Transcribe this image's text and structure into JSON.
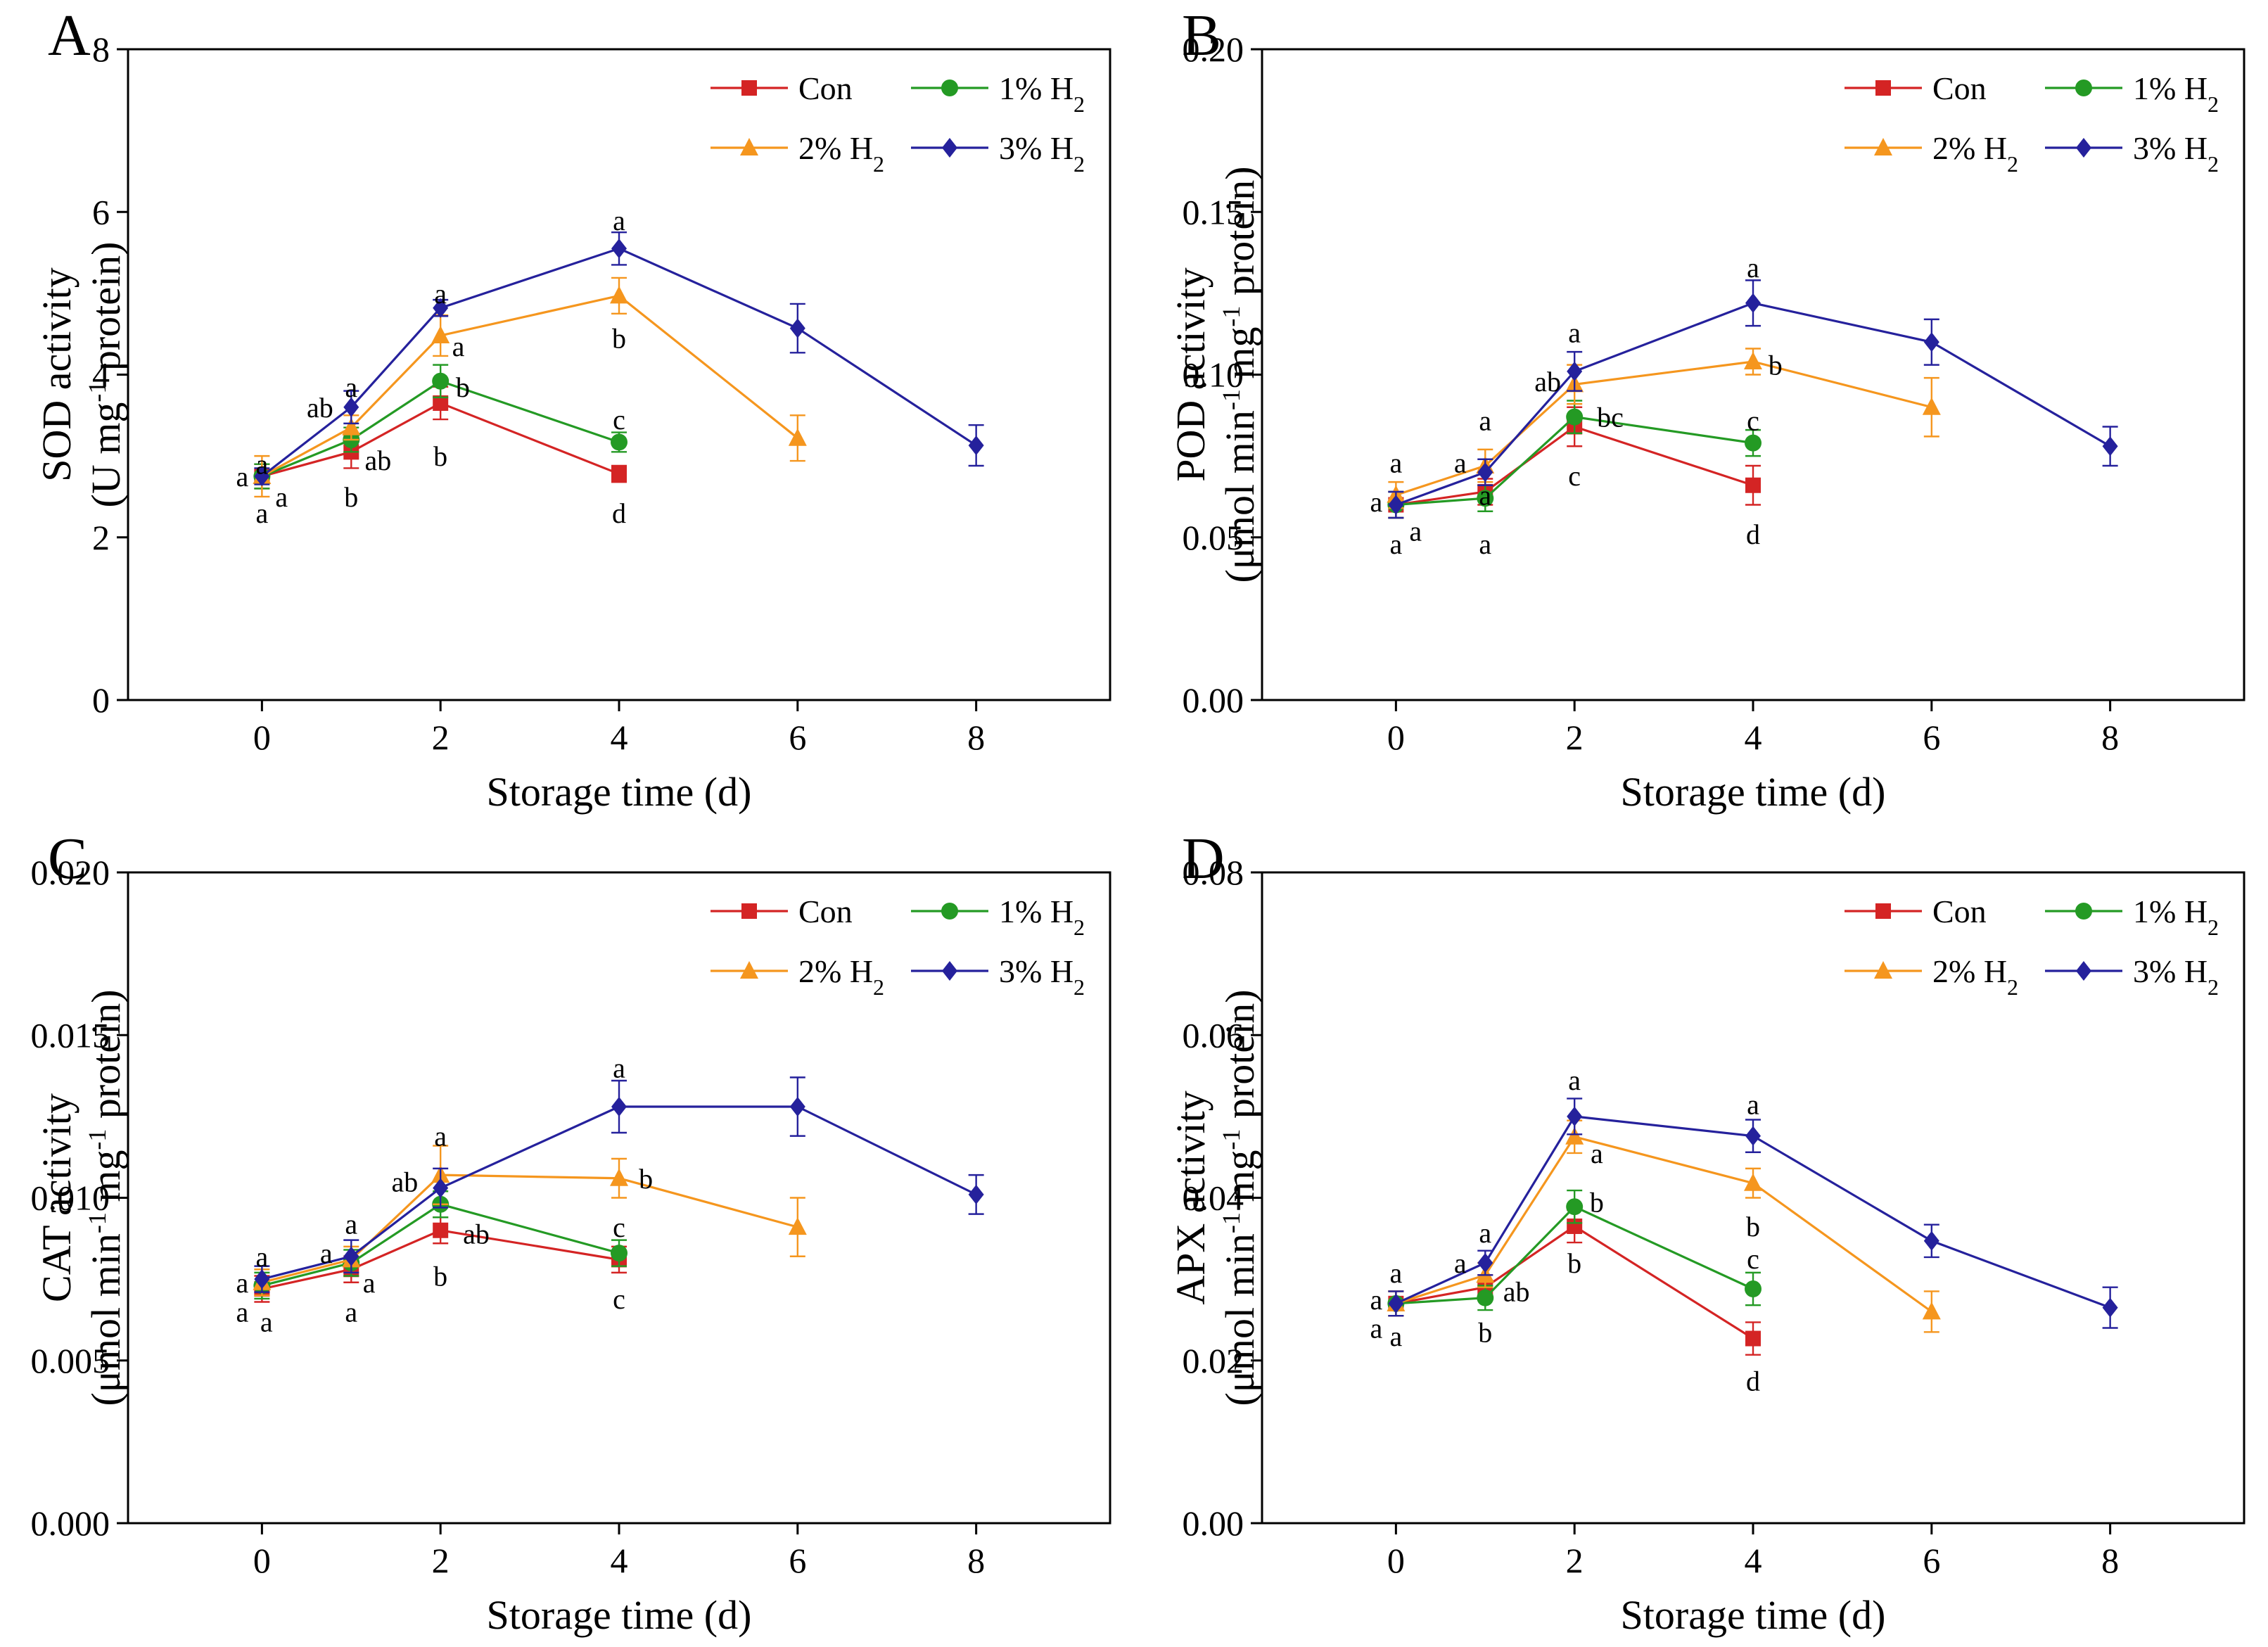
{
  "colors": {
    "con": "#d42424",
    "h1": "#249a24",
    "h2": "#f5961e",
    "h3": "#25219c"
  },
  "chart_data": [
    {
      "panel": "A",
      "type": "line",
      "xlabel": "Storage time (d)",
      "ylabel_1": "SOD activity",
      "ylabel_2_pre": "(U mg",
      "ylabel_2_sup": "-1",
      "ylabel_2_post": " protein)",
      "xlim": [
        -1.5,
        9.5
      ],
      "ylim": [
        0,
        8
      ],
      "xticks": [
        0,
        2,
        4,
        6,
        8
      ],
      "yticks": [
        0,
        2,
        4,
        6,
        8
      ],
      "ytick_labels": [
        "0",
        "2",
        "4",
        "6",
        "8"
      ],
      "legend_position": "top-right",
      "series": [
        {
          "key": "con",
          "name": "Con",
          "sub": "",
          "marker": "square",
          "x": [
            0,
            1,
            2,
            4
          ],
          "y": [
            2.75,
            3.05,
            3.65,
            2.78
          ],
          "err": [
            0.15,
            0.2,
            0.2,
            0.1
          ]
        },
        {
          "key": "h1",
          "name": "1% H",
          "sub": "2",
          "marker": "circle",
          "x": [
            0,
            1,
            2,
            4
          ],
          "y": [
            2.75,
            3.2,
            3.92,
            3.17
          ],
          "err": [
            0.15,
            0.15,
            0.2,
            0.12
          ]
        },
        {
          "key": "h2",
          "name": "2% H",
          "sub": "2",
          "marker": "triangle",
          "x": [
            0,
            1,
            2,
            4,
            6
          ],
          "y": [
            2.75,
            3.35,
            4.48,
            4.97,
            3.22
          ],
          "err": [
            0.25,
            0.15,
            0.25,
            0.22,
            0.28
          ]
        },
        {
          "key": "h3",
          "name": "3% H",
          "sub": "2",
          "marker": "diamond",
          "x": [
            0,
            1,
            2,
            4,
            6,
            8
          ],
          "y": [
            2.75,
            3.6,
            4.82,
            5.55,
            4.57,
            3.13
          ],
          "err": [
            0.1,
            0.2,
            0.1,
            0.2,
            0.3,
            0.25
          ]
        }
      ],
      "annotations": [
        {
          "text": "a",
          "x": 0,
          "y": 2.9
        },
        {
          "text": "a",
          "x": -0.22,
          "y": 2.75
        },
        {
          "text": "a",
          "x": 0.22,
          "y": 2.5
        },
        {
          "text": "a",
          "x": 0,
          "y": 2.3
        },
        {
          "text": "a",
          "x": 1,
          "y": 3.85
        },
        {
          "text": "ab",
          "x": 0.65,
          "y": 3.6
        },
        {
          "text": "ab",
          "x": 1.3,
          "y": 2.95
        },
        {
          "text": "b",
          "x": 1,
          "y": 2.5
        },
        {
          "text": "a",
          "x": 2,
          "y": 5.0
        },
        {
          "text": "a",
          "x": 2.2,
          "y": 4.35
        },
        {
          "text": "b",
          "x": 2.25,
          "y": 3.85
        },
        {
          "text": "b",
          "x": 2,
          "y": 3.0
        },
        {
          "text": "a",
          "x": 4,
          "y": 5.9
        },
        {
          "text": "b",
          "x": 4,
          "y": 4.45
        },
        {
          "text": "c",
          "x": 4,
          "y": 3.45
        },
        {
          "text": "d",
          "x": 4,
          "y": 2.3
        }
      ]
    },
    {
      "panel": "B",
      "type": "line",
      "xlabel": "Storage time (d)",
      "ylabel_1": "POD activity",
      "ylabel_2_pre": "(μmol min",
      "ylabel_2_sup": "-1",
      "ylabel_2_mid": " mg",
      "ylabel_2_sup2": "-1",
      "ylabel_2_post": " protein)",
      "xlim": [
        -1.5,
        9.5
      ],
      "ylim": [
        0,
        0.2
      ],
      "xticks": [
        0,
        2,
        4,
        6,
        8
      ],
      "yticks": [
        0,
        0.05,
        0.1,
        0.15,
        0.2
      ],
      "ytick_labels": [
        "0.00",
        "0.05",
        "0.10",
        "0.15",
        "0.20"
      ],
      "legend_position": "top-right",
      "series": [
        {
          "key": "con",
          "name": "Con",
          "sub": "",
          "marker": "square",
          "x": [
            0,
            1,
            2,
            4
          ],
          "y": [
            0.06,
            0.064,
            0.084,
            0.066
          ],
          "err": [
            0.004,
            0.004,
            0.006,
            0.006
          ]
        },
        {
          "key": "h1",
          "name": "1% H",
          "sub": "2",
          "marker": "circle",
          "x": [
            0,
            1,
            2,
            4
          ],
          "y": [
            0.06,
            0.062,
            0.087,
            0.079
          ],
          "err": [
            0.004,
            0.004,
            0.005,
            0.004
          ]
        },
        {
          "key": "h2",
          "name": "2% H",
          "sub": "2",
          "marker": "triangle",
          "x": [
            0,
            1,
            2,
            4,
            6
          ],
          "y": [
            0.063,
            0.072,
            0.097,
            0.104,
            0.09
          ],
          "err": [
            0.004,
            0.005,
            0.006,
            0.004,
            0.009
          ]
        },
        {
          "key": "h3",
          "name": "3% H",
          "sub": "2",
          "marker": "diamond",
          "x": [
            0,
            1,
            2,
            4,
            6,
            8
          ],
          "y": [
            0.06,
            0.07,
            0.101,
            0.122,
            0.11,
            0.078
          ],
          "err": [
            0.004,
            0.004,
            0.006,
            0.007,
            0.007,
            0.006
          ]
        }
      ],
      "annotations": [
        {
          "text": "a",
          "x": 0,
          "y": 0.073
        },
        {
          "text": "a",
          "x": -0.22,
          "y": 0.061
        },
        {
          "text": "a",
          "x": 0.22,
          "y": 0.052
        },
        {
          "text": "a",
          "x": 0,
          "y": 0.048
        },
        {
          "text": "a",
          "x": 1,
          "y": 0.086
        },
        {
          "text": "a",
          "x": 0.72,
          "y": 0.073
        },
        {
          "text": "a",
          "x": 1,
          "y": 0.063
        },
        {
          "text": "a",
          "x": 1,
          "y": 0.048
        },
        {
          "text": "a",
          "x": 2,
          "y": 0.113
        },
        {
          "text": "ab",
          "x": 1.7,
          "y": 0.098
        },
        {
          "text": "bc",
          "x": 2.4,
          "y": 0.087
        },
        {
          "text": "c",
          "x": 2,
          "y": 0.069
        },
        {
          "text": "a",
          "x": 4,
          "y": 0.133
        },
        {
          "text": "b",
          "x": 4.25,
          "y": 0.103
        },
        {
          "text": "c",
          "x": 4,
          "y": 0.086
        },
        {
          "text": "d",
          "x": 4,
          "y": 0.051
        }
      ]
    },
    {
      "panel": "C",
      "type": "line",
      "xlabel": "Storage time (d)",
      "ylabel_1": "CAT activity",
      "ylabel_2_pre": "(μmol min",
      "ylabel_2_sup": "-1",
      "ylabel_2_mid": " mg",
      "ylabel_2_sup2": "-1",
      "ylabel_2_post": " protein)",
      "xlim": [
        -1.5,
        9.5
      ],
      "ylim": [
        0,
        0.02
      ],
      "xticks": [
        0,
        2,
        4,
        6,
        8
      ],
      "yticks": [
        0,
        0.005,
        0.01,
        0.015,
        0.02
      ],
      "ytick_labels": [
        "0.000",
        "0.005",
        "0.010",
        "0.015",
        "0.020"
      ],
      "legend_position": "top-right",
      "series": [
        {
          "key": "con",
          "name": "Con",
          "sub": "",
          "marker": "square",
          "x": [
            0,
            1,
            2,
            4
          ],
          "y": [
            0.0072,
            0.0078,
            0.009,
            0.0081
          ],
          "err": [
            0.0004,
            0.0004,
            0.0004,
            0.0004
          ]
        },
        {
          "key": "h1",
          "name": "1% H",
          "sub": "2",
          "marker": "circle",
          "x": [
            0,
            1,
            2,
            4
          ],
          "y": [
            0.0073,
            0.008,
            0.0098,
            0.0083
          ],
          "err": [
            0.0004,
            0.0004,
            0.0004,
            0.0004
          ]
        },
        {
          "key": "h2",
          "name": "2% H",
          "sub": "2",
          "marker": "triangle",
          "x": [
            0,
            1,
            2,
            4,
            6
          ],
          "y": [
            0.0074,
            0.0081,
            0.0107,
            0.0106,
            0.0091
          ],
          "err": [
            0.0004,
            0.0004,
            0.0009,
            0.0006,
            0.0009
          ]
        },
        {
          "key": "h3",
          "name": "3% H",
          "sub": "2",
          "marker": "diamond",
          "x": [
            0,
            1,
            2,
            4,
            6,
            8
          ],
          "y": [
            0.0075,
            0.0082,
            0.0103,
            0.0128,
            0.0128,
            0.0101
          ],
          "err": [
            0.0004,
            0.0005,
            0.0006,
            0.0008,
            0.0009,
            0.0006
          ]
        }
      ],
      "annotations": [
        {
          "text": "a",
          "x": 0,
          "y": 0.0082
        },
        {
          "text": "a",
          "x": -0.22,
          "y": 0.0074
        },
        {
          "text": "a",
          "x": -0.22,
          "y": 0.0065
        },
        {
          "text": "a",
          "x": 0.05,
          "y": 0.0062
        },
        {
          "text": "a",
          "x": 1,
          "y": 0.0092
        },
        {
          "text": "a",
          "x": 0.72,
          "y": 0.0083
        },
        {
          "text": "a",
          "x": 1.2,
          "y": 0.0074
        },
        {
          "text": "a",
          "x": 1,
          "y": 0.0065
        },
        {
          "text": "a",
          "x": 2,
          "y": 0.0119
        },
        {
          "text": "ab",
          "x": 1.6,
          "y": 0.0105
        },
        {
          "text": "ab",
          "x": 2.4,
          "y": 0.0089
        },
        {
          "text": "b",
          "x": 2,
          "y": 0.0076
        },
        {
          "text": "a",
          "x": 4,
          "y": 0.014
        },
        {
          "text": "b",
          "x": 4.3,
          "y": 0.0106
        },
        {
          "text": "c",
          "x": 4,
          "y": 0.0091
        },
        {
          "text": "c",
          "x": 4,
          "y": 0.0069
        }
      ]
    },
    {
      "panel": "D",
      "type": "line",
      "xlabel": "Storage time (d)",
      "ylabel_1": "APX activity",
      "ylabel_2_pre": "(μmol min",
      "ylabel_2_sup": "-1",
      "ylabel_2_mid": " mg",
      "ylabel_2_sup2": "-1",
      "ylabel_2_post": " protein)",
      "xlim": [
        -1.5,
        9.5
      ],
      "ylim": [
        0,
        0.08
      ],
      "xticks": [
        0,
        2,
        4,
        6,
        8
      ],
      "yticks": [
        0,
        0.02,
        0.04,
        0.06,
        0.08
      ],
      "ytick_labels": [
        "0.00",
        "0.02",
        "0.04",
        "0.06",
        "0.08"
      ],
      "legend_position": "top-right",
      "series": [
        {
          "key": "con",
          "name": "Con",
          "sub": "",
          "marker": "square",
          "x": [
            0,
            1,
            2,
            4
          ],
          "y": [
            0.027,
            0.029,
            0.0365,
            0.0227
          ],
          "err": [
            0.0015,
            0.0015,
            0.002,
            0.002
          ]
        },
        {
          "key": "h1",
          "name": "1% H",
          "sub": "2",
          "marker": "circle",
          "x": [
            0,
            1,
            2,
            4
          ],
          "y": [
            0.027,
            0.0277,
            0.0389,
            0.0288
          ],
          "err": [
            0.0015,
            0.0015,
            0.002,
            0.002
          ]
        },
        {
          "key": "h2",
          "name": "2% H",
          "sub": "2",
          "marker": "triangle",
          "x": [
            0,
            1,
            2,
            4,
            6
          ],
          "y": [
            0.027,
            0.0305,
            0.0475,
            0.0418,
            0.026
          ],
          "err": [
            0.0015,
            0.0015,
            0.002,
            0.0018,
            0.0025
          ]
        },
        {
          "key": "h3",
          "name": "3% H",
          "sub": "2",
          "marker": "diamond",
          "x": [
            0,
            1,
            2,
            4,
            6,
            8
          ],
          "y": [
            0.027,
            0.032,
            0.05,
            0.0476,
            0.0347,
            0.0265
          ],
          "err": [
            0.0015,
            0.0015,
            0.0022,
            0.002,
            0.002,
            0.0025
          ]
        }
      ],
      "annotations": [
        {
          "text": "a",
          "x": 0,
          "y": 0.0308
        },
        {
          "text": "a",
          "x": -0.22,
          "y": 0.0275
        },
        {
          "text": "a",
          "x": -0.22,
          "y": 0.024
        },
        {
          "text": "a",
          "x": 0,
          "y": 0.023
        },
        {
          "text": "a",
          "x": 1,
          "y": 0.0357
        },
        {
          "text": "a",
          "x": 0.72,
          "y": 0.032
        },
        {
          "text": "ab",
          "x": 1.35,
          "y": 0.0285
        },
        {
          "text": "b",
          "x": 1,
          "y": 0.0235
        },
        {
          "text": "a",
          "x": 2,
          "y": 0.0545
        },
        {
          "text": "a",
          "x": 2.25,
          "y": 0.0455
        },
        {
          "text": "b",
          "x": 2.25,
          "y": 0.0395
        },
        {
          "text": "b",
          "x": 2,
          "y": 0.032
        },
        {
          "text": "a",
          "x": 4,
          "y": 0.0515
        },
        {
          "text": "b",
          "x": 4,
          "y": 0.0365
        },
        {
          "text": "c",
          "x": 4,
          "y": 0.0325
        },
        {
          "text": "d",
          "x": 4,
          "y": 0.0175
        }
      ]
    }
  ]
}
